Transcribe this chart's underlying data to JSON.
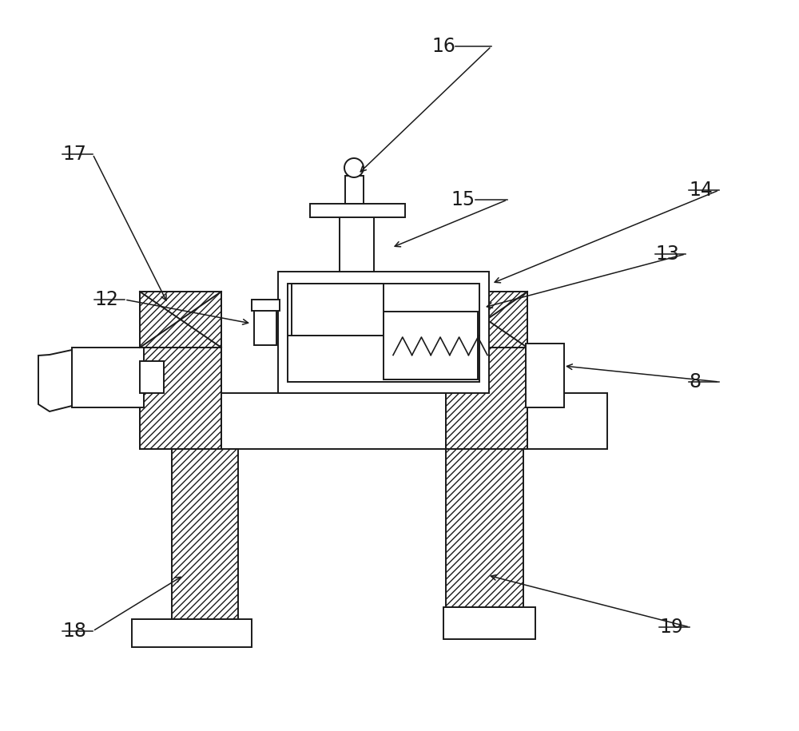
{
  "fig_width": 10.0,
  "fig_height": 9.15,
  "dpi": 100,
  "bg_color": "#ffffff",
  "line_color": "#1a1a1a",
  "label_fontsize": 17,
  "lw": 1.4
}
